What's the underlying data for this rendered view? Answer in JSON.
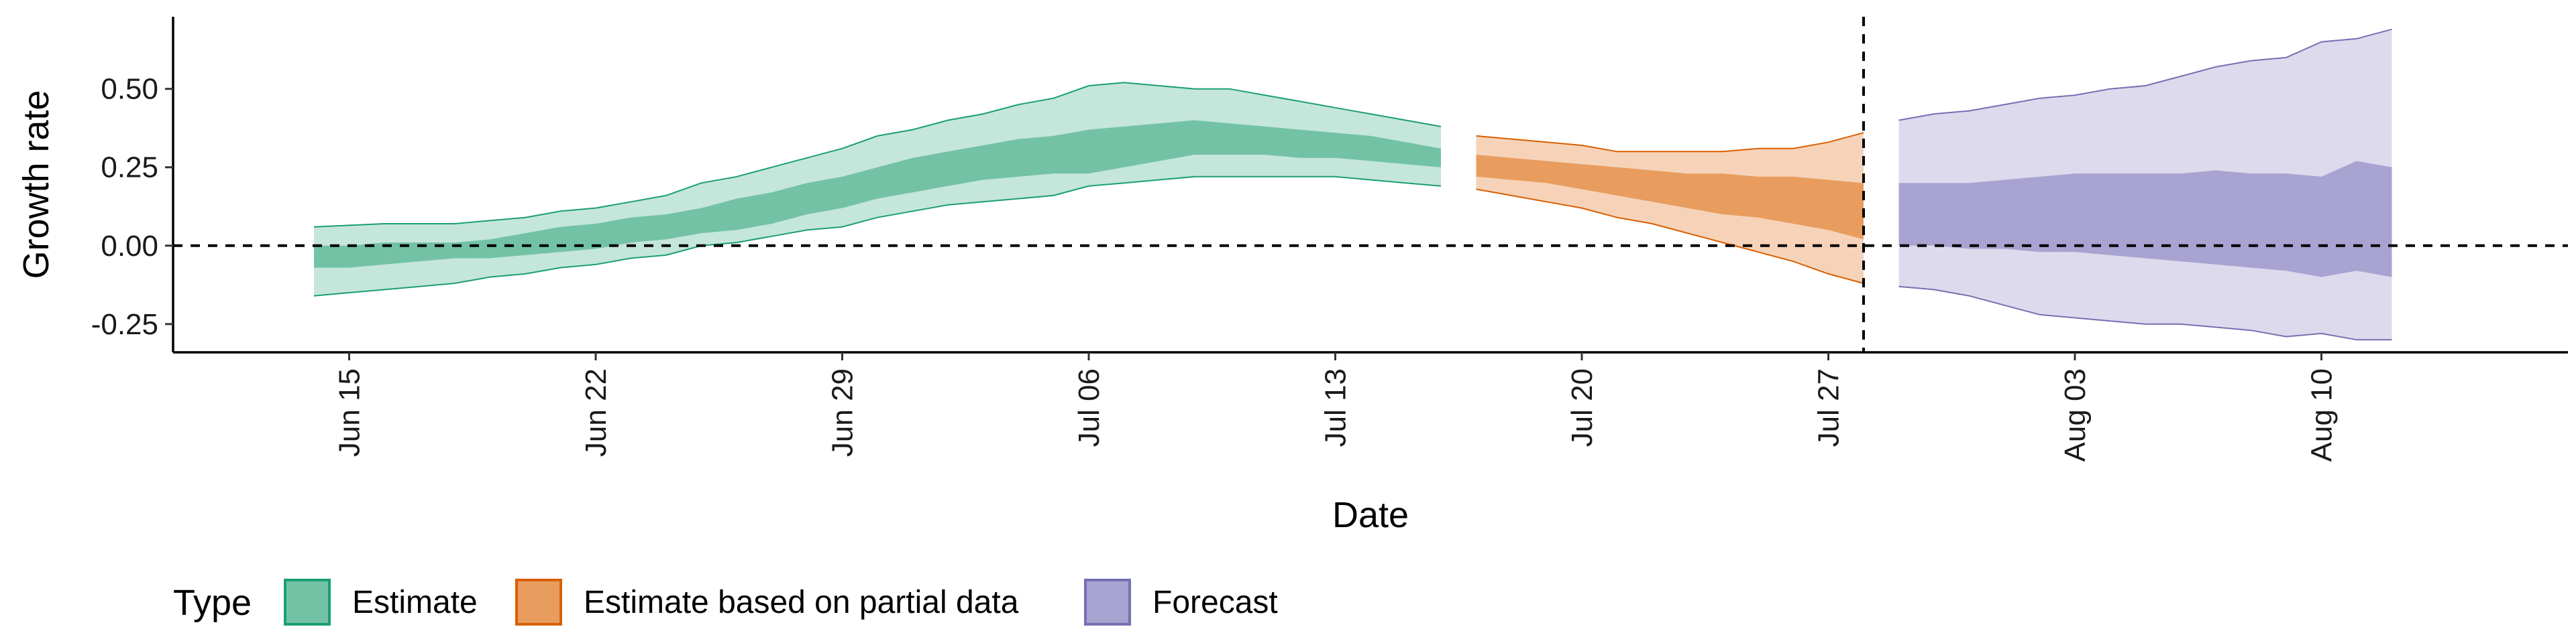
{
  "chart_data": {
    "type": "area",
    "xlabel": "Date",
    "ylabel": "Growth rate",
    "x_range": [
      "2020-06-10",
      "2020-08-17"
    ],
    "ylim": [
      -0.34,
      0.73
    ],
    "y_ticks": [
      -0.25,
      0.0,
      0.25,
      0.5
    ],
    "y_tick_labels": [
      "-0.25",
      "0.00",
      "0.25",
      "0.50"
    ],
    "x_ticks": [
      "2020-06-15",
      "2020-06-22",
      "2020-06-29",
      "2020-07-06",
      "2020-07-13",
      "2020-07-20",
      "2020-07-27",
      "2020-08-03",
      "2020-08-10"
    ],
    "x_tick_labels": [
      "Jun 15",
      "Jun 22",
      "Jun 29",
      "Jul 06",
      "Jul 13",
      "Jul 20",
      "Jul 27",
      "Aug 03",
      "Aug 10"
    ],
    "hline_y": 0,
    "vline_date": "2020-07-28",
    "grid": false,
    "legend": {
      "title": "Type",
      "position": "bottom",
      "items": [
        {
          "label": "Estimate",
          "fill": "#73c2a6",
          "stroke": "#1b9e77"
        },
        {
          "label": "Estimate based on partial data",
          "fill": "#e89d5f",
          "stroke": "#d95f02"
        },
        {
          "label": "Forecast",
          "fill": "#a8a3d0",
          "stroke": "#7570b3"
        }
      ]
    },
    "series": [
      {
        "name": "Estimate",
        "color": "#1b9e77",
        "outer_fill": "#c5e6da",
        "inner_fill": "#73c2a6",
        "dates": [
          "2020-06-14",
          "2020-06-15",
          "2020-06-16",
          "2020-06-17",
          "2020-06-18",
          "2020-06-19",
          "2020-06-20",
          "2020-06-21",
          "2020-06-22",
          "2020-06-23",
          "2020-06-24",
          "2020-06-25",
          "2020-06-26",
          "2020-06-27",
          "2020-06-28",
          "2020-06-29",
          "2020-06-30",
          "2020-07-01",
          "2020-07-02",
          "2020-07-03",
          "2020-07-04",
          "2020-07-05",
          "2020-07-06",
          "2020-07-07",
          "2020-07-08",
          "2020-07-09",
          "2020-07-10",
          "2020-07-11",
          "2020-07-12",
          "2020-07-13",
          "2020-07-14",
          "2020-07-15",
          "2020-07-16"
        ],
        "upper90": [
          0.06,
          0.065,
          0.07,
          0.07,
          0.07,
          0.08,
          0.09,
          0.11,
          0.12,
          0.14,
          0.16,
          0.2,
          0.22,
          0.25,
          0.28,
          0.31,
          0.35,
          0.37,
          0.4,
          0.42,
          0.45,
          0.47,
          0.51,
          0.52,
          0.51,
          0.5,
          0.5,
          0.48,
          0.46,
          0.44,
          0.42,
          0.4,
          0.38
        ],
        "upper50": [
          0.0,
          0.0,
          0.01,
          0.01,
          0.01,
          0.02,
          0.04,
          0.06,
          0.07,
          0.09,
          0.1,
          0.12,
          0.15,
          0.17,
          0.2,
          0.22,
          0.25,
          0.28,
          0.3,
          0.32,
          0.34,
          0.35,
          0.37,
          0.38,
          0.39,
          0.4,
          0.39,
          0.38,
          0.37,
          0.36,
          0.35,
          0.33,
          0.31
        ],
        "lower50": [
          -0.07,
          -0.07,
          -0.06,
          -0.05,
          -0.04,
          -0.04,
          -0.03,
          -0.02,
          -0.01,
          0.01,
          0.02,
          0.04,
          0.05,
          0.07,
          0.1,
          0.12,
          0.15,
          0.17,
          0.19,
          0.21,
          0.22,
          0.23,
          0.23,
          0.25,
          0.27,
          0.29,
          0.29,
          0.29,
          0.28,
          0.28,
          0.27,
          0.26,
          0.25
        ],
        "lower90": [
          -0.16,
          -0.15,
          -0.14,
          -0.13,
          -0.12,
          -0.1,
          -0.09,
          -0.07,
          -0.06,
          -0.04,
          -0.03,
          0.0,
          0.01,
          0.03,
          0.05,
          0.06,
          0.09,
          0.11,
          0.13,
          0.14,
          0.15,
          0.16,
          0.19,
          0.2,
          0.21,
          0.22,
          0.22,
          0.22,
          0.22,
          0.22,
          0.21,
          0.2,
          0.19
        ]
      },
      {
        "name": "Estimate based on partial data",
        "color": "#d95f02",
        "outer_fill": "#f6d3b8",
        "inner_fill": "#e89d5f",
        "dates": [
          "2020-07-17",
          "2020-07-18",
          "2020-07-19",
          "2020-07-20",
          "2020-07-21",
          "2020-07-22",
          "2020-07-23",
          "2020-07-24",
          "2020-07-25",
          "2020-07-26",
          "2020-07-27",
          "2020-07-28"
        ],
        "upper90": [
          0.35,
          0.34,
          0.33,
          0.32,
          0.3,
          0.3,
          0.3,
          0.3,
          0.31,
          0.31,
          0.33,
          0.36
        ],
        "upper50": [
          0.29,
          0.28,
          0.27,
          0.26,
          0.25,
          0.24,
          0.23,
          0.23,
          0.22,
          0.22,
          0.21,
          0.2
        ],
        "lower50": [
          0.22,
          0.21,
          0.2,
          0.18,
          0.16,
          0.14,
          0.12,
          0.1,
          0.09,
          0.07,
          0.05,
          0.02
        ],
        "lower90": [
          0.18,
          0.16,
          0.14,
          0.12,
          0.09,
          0.07,
          0.04,
          0.01,
          -0.02,
          -0.05,
          -0.09,
          -0.12
        ]
      },
      {
        "name": "Forecast",
        "color": "#7570b3",
        "outer_fill": "#dcdaec",
        "inner_fill": "#a8a3d0",
        "dates": [
          "2020-07-29",
          "2020-07-30",
          "2020-07-31",
          "2020-08-01",
          "2020-08-02",
          "2020-08-03",
          "2020-08-04",
          "2020-08-05",
          "2020-08-06",
          "2020-08-07",
          "2020-08-08",
          "2020-08-09",
          "2020-08-10",
          "2020-08-11",
          "2020-08-12"
        ],
        "upper90": [
          0.4,
          0.42,
          0.43,
          0.45,
          0.47,
          0.48,
          0.5,
          0.51,
          0.54,
          0.57,
          0.59,
          0.6,
          0.65,
          0.66,
          0.69
        ],
        "upper50": [
          0.2,
          0.2,
          0.2,
          0.21,
          0.22,
          0.23,
          0.23,
          0.23,
          0.23,
          0.24,
          0.23,
          0.23,
          0.22,
          0.27,
          0.25
        ],
        "lower50": [
          0.0,
          0.0,
          -0.01,
          -0.01,
          -0.02,
          -0.02,
          -0.03,
          -0.04,
          -0.05,
          -0.06,
          -0.07,
          -0.08,
          -0.1,
          -0.08,
          -0.1
        ],
        "lower90": [
          -0.13,
          -0.14,
          -0.16,
          -0.19,
          -0.22,
          -0.23,
          -0.24,
          -0.25,
          -0.25,
          -0.26,
          -0.27,
          -0.29,
          -0.28,
          -0.3,
          -0.3
        ]
      }
    ]
  }
}
